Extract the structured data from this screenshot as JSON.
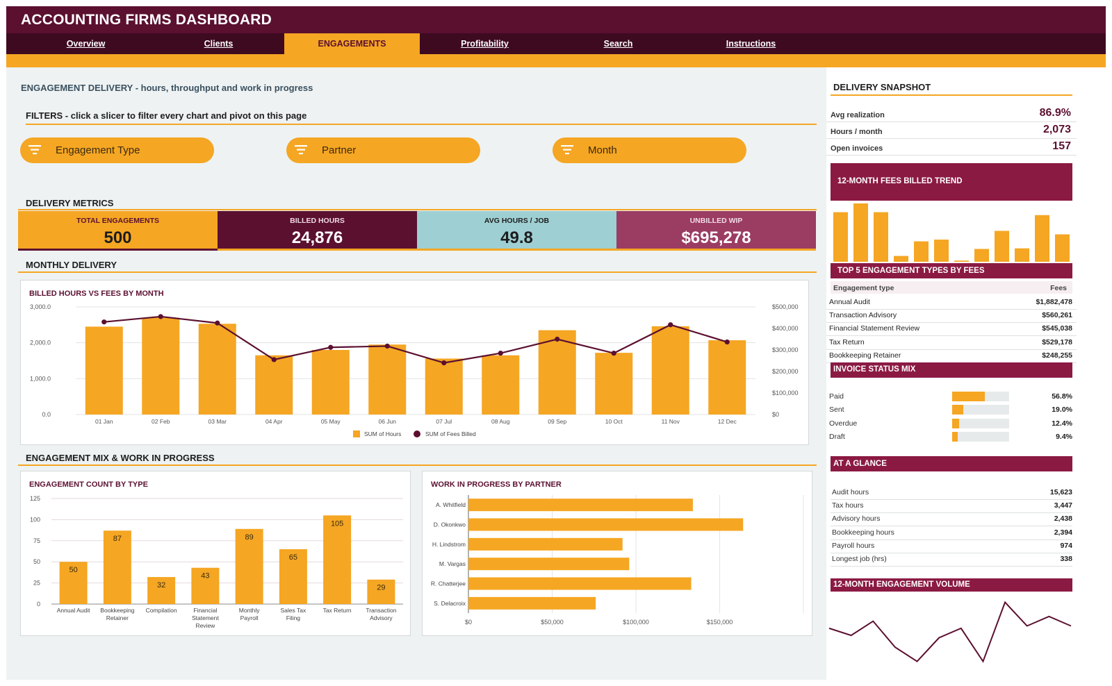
{
  "title": "ACCOUNTING FIRMS DASHBOARD",
  "nav": [
    {
      "label": "Overview"
    },
    {
      "label": "Clients"
    },
    {
      "label": "ENGAGEMENTS"
    },
    {
      "label": "Profitability"
    },
    {
      "label": "Search"
    },
    {
      "label": "Instructions"
    }
  ],
  "page_heading": "ENGAGEMENT DELIVERY  -  hours, throughput and work in progress",
  "filters_heading": "FILTERS  -  click a slicer to filter every chart and pivot on this page",
  "slicers": [
    "Engagement Type",
    "Partner",
    "Month"
  ],
  "metrics_heading": "DELIVERY METRICS",
  "kpis": [
    {
      "label": "TOTAL ENGAGEMENTS",
      "value": "500",
      "bg": "#f5a623",
      "fg": "#5b1030",
      "vfg": "#1d1d1d"
    },
    {
      "label": "BILLED HOURS",
      "value": "24,876",
      "bg": "#5b1030",
      "fg": "#f0d9e1",
      "vfg": "#ffffff"
    },
    {
      "label": "AVG HOURS / JOB",
      "value": "49.8",
      "bg": "#9ecfd3",
      "fg": "#1d1d1d",
      "vfg": "#1d1d1d"
    },
    {
      "label": "UNBILLED WIP",
      "value": "$695,278",
      "bg": "#9b3c63",
      "fg": "#f3dce5",
      "vfg": "#ffffff"
    }
  ],
  "monthly_heading": "MONTHLY DELIVERY",
  "mix_heading": "ENGAGEMENT MIX & WORK IN PROGRESS",
  "combo_chart": {
    "title": "BILLED HOURS VS FEES BY MONTH",
    "categories": [
      "01 Jan",
      "02 Feb",
      "03 Mar",
      "04 Apr",
      "05 May",
      "06 Jun",
      "07 Jul",
      "08 Aug",
      "09 Sep",
      "10 Oct",
      "11 Nov",
      "12 Dec"
    ],
    "hours": [
      2450,
      2700,
      2530,
      1650,
      1800,
      1950,
      1560,
      1650,
      2350,
      1720,
      2460,
      2070
    ],
    "fees": [
      430000,
      455000,
      425000,
      255000,
      312000,
      318000,
      240000,
      285000,
      350000,
      285000,
      417000,
      337000
    ],
    "y_ticks": [
      "0.0",
      "1,000.0",
      "2,000.0",
      "3,000.0"
    ],
    "y2_ticks": [
      "$0",
      "$100,000",
      "$200,000",
      "$300,000",
      "$400,000",
      "$500,000"
    ],
    "ylim": [
      0,
      3000
    ],
    "y2lim": [
      0,
      500000
    ],
    "legend": [
      "SUM of Hours",
      "SUM of Fees Billed"
    ]
  },
  "count_chart": {
    "title": "ENGAGEMENT COUNT BY TYPE",
    "categories": [
      [
        "Annual Audit"
      ],
      [
        "Bookkeeping",
        "Retainer"
      ],
      [
        "Compilation"
      ],
      [
        "Financial",
        "Statement",
        "Review"
      ],
      [
        "Monthly",
        "Payroll"
      ],
      [
        "Sales Tax",
        "Filing"
      ],
      [
        "Tax Return"
      ],
      [
        "Transaction",
        "Advisory"
      ]
    ],
    "values": [
      50,
      87,
      32,
      43,
      89,
      65,
      105,
      29
    ],
    "value_labels": [
      "50",
      "87",
      "32",
      "43",
      "89",
      "65",
      "105",
      "29"
    ],
    "y_ticks": [
      "0",
      "25",
      "50",
      "75",
      "100",
      "125"
    ],
    "ylim": [
      0,
      125
    ]
  },
  "wip_chart": {
    "title": "WORK IN PROGRESS BY PARTNER",
    "categories": [
      "A. Whitfield",
      "D. Okonkwo",
      "H. Lindstrom",
      "M. Vargas",
      "R. Chatterjee",
      "S. Delacroix"
    ],
    "values": [
      134000,
      164000,
      92000,
      96000,
      133000,
      76000
    ],
    "x_ticks": [
      "$0",
      "$50,000",
      "$100,000",
      "$150,000"
    ],
    "xlim": [
      0,
      200000
    ]
  },
  "snapshot": {
    "heading": "DELIVERY SNAPSHOT",
    "rows": [
      {
        "label": "Avg realization",
        "value": "86.9%"
      },
      {
        "label": "Hours / month",
        "value": "2,073"
      },
      {
        "label": "Open invoices",
        "value": "157"
      }
    ]
  },
  "trend": {
    "heading": "12-MONTH FEES BILLED TREND",
    "values": [
      85,
      100,
      85,
      10,
      35,
      38,
      2,
      22,
      53,
      23,
      80,
      47
    ]
  },
  "top5": {
    "heading": "TOP 5 ENGAGEMENT TYPES BY FEES",
    "col1": "Engagement type",
    "col2": "Fees",
    "rows": [
      {
        "label": "Annual Audit",
        "value": "$1,882,478"
      },
      {
        "label": "Transaction Advisory",
        "value": "$560,261"
      },
      {
        "label": "Financial Statement Review",
        "value": "$545,038"
      },
      {
        "label": "Tax Return",
        "value": "$529,178"
      },
      {
        "label": "Bookkeeping Retainer",
        "value": "$248,255"
      }
    ]
  },
  "invoice": {
    "heading": "INVOICE STATUS MIX",
    "rows": [
      {
        "label": "Paid",
        "pct": "56.8%",
        "fraction": 0.568
      },
      {
        "label": "Sent",
        "pct": "19.0%",
        "fraction": 0.19
      },
      {
        "label": "Overdue",
        "pct": "12.4%",
        "fraction": 0.124
      },
      {
        "label": "Draft",
        "pct": "9.4%",
        "fraction": 0.094
      }
    ]
  },
  "glance": {
    "heading": "AT A GLANCE",
    "rows": [
      {
        "label": "Audit hours",
        "value": "15,623"
      },
      {
        "label": "Tax hours",
        "value": "3,447"
      },
      {
        "label": "Advisory hours",
        "value": "2,438"
      },
      {
        "label": "Bookkeeping hours",
        "value": "2,394"
      },
      {
        "label": "Payroll hours",
        "value": "974"
      },
      {
        "label": "Longest job (hrs)",
        "value": "338"
      }
    ]
  },
  "volume": {
    "heading": "12-MONTH ENGAGEMENT VOLUME",
    "values": [
      43,
      40,
      46,
      35,
      29,
      39,
      43,
      29,
      54,
      44,
      48,
      44
    ]
  },
  "colors": {
    "orange": "#f5a623",
    "maroon": "#5b1030",
    "accent": "#8b1a43"
  }
}
